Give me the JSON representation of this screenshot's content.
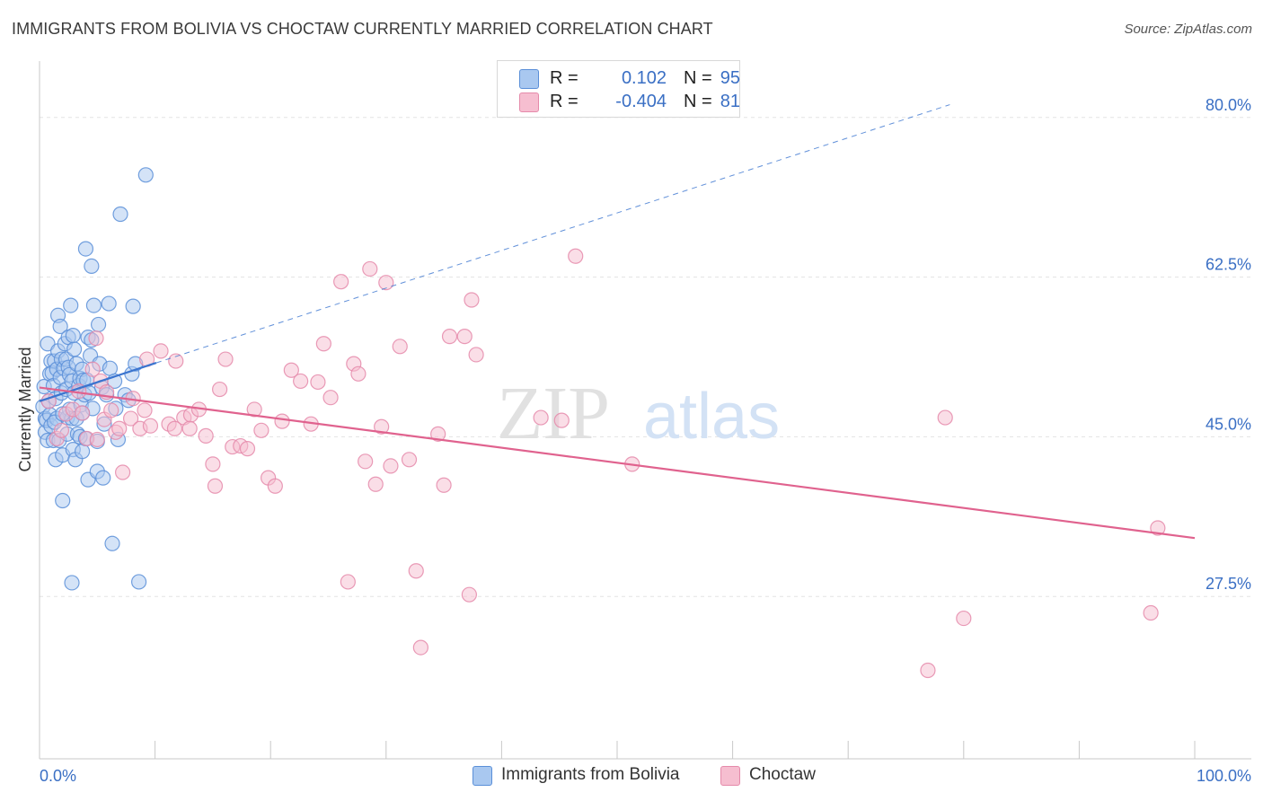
{
  "header": {
    "title": "IMMIGRANTS FROM BOLIVIA VS CHOCTAW CURRENTLY MARRIED CORRELATION CHART",
    "source": "Source: ZipAtlas.com"
  },
  "watermark": {
    "part1": "ZIP",
    "part2": "atlas"
  },
  "legend_top": {
    "rows": [
      {
        "r_label": "R =",
        "r_value": "0.102",
        "n_label": "N =",
        "n_value": "95"
      },
      {
        "r_label": "R =",
        "r_value": "-0.404",
        "n_label": "N =",
        "n_value": "81"
      }
    ]
  },
  "legend_bottom": {
    "items": [
      {
        "label": "Immigrants from Bolivia"
      },
      {
        "label": "Choctaw"
      }
    ]
  },
  "colors": {
    "bolivia_fill": "#a9c8f0",
    "bolivia_stroke": "#5a8fd8",
    "bolivia_line": "#3a74cf",
    "choctaw_fill": "#f6bed0",
    "choctaw_stroke": "#e58aaa",
    "choctaw_line": "#e0628e",
    "grid": "#e3e3e3",
    "axis": "#c8c8c8",
    "tick_label": "#3a6fc4"
  },
  "chart_data": {
    "type": "scatter",
    "xlabel": "",
    "ylabel": "Currently Married",
    "xlim": [
      0,
      100
    ],
    "ylim": [
      10,
      85
    ],
    "x_tick_labels": [
      {
        "value": 0,
        "label": "0.0%"
      },
      {
        "value": 100,
        "label": "100.0%"
      }
    ],
    "y_tick_labels": [
      {
        "value": 27.5,
        "label": "27.5%"
      },
      {
        "value": 45.0,
        "label": "45.0%"
      },
      {
        "value": 62.5,
        "label": "62.5%"
      },
      {
        "value": 80.0,
        "label": "80.0%"
      }
    ],
    "grid": true,
    "legend_position": "top-center",
    "series": [
      {
        "name": "Immigrants from Bolivia",
        "color": "#5a8fd8",
        "points": [
          [
            0.3,
            48.3
          ],
          [
            0.4,
            50.5
          ],
          [
            0.5,
            47.0
          ],
          [
            0.5,
            45.5
          ],
          [
            0.6,
            46.8
          ],
          [
            0.7,
            44.6
          ],
          [
            0.7,
            55.2
          ],
          [
            0.8,
            48.9
          ],
          [
            0.9,
            47.4
          ],
          [
            0.9,
            51.9
          ],
          [
            1.0,
            53.3
          ],
          [
            1.0,
            46.2
          ],
          [
            1.1,
            52.0
          ],
          [
            1.2,
            44.6
          ],
          [
            1.2,
            50.6
          ],
          [
            1.3,
            53.3
          ],
          [
            1.4,
            42.5
          ],
          [
            1.4,
            49.2
          ],
          [
            1.5,
            47.0
          ],
          [
            1.5,
            52.4
          ],
          [
            1.6,
            58.3
          ],
          [
            1.6,
            54.4
          ],
          [
            1.7,
            44.6
          ],
          [
            1.8,
            51.5
          ],
          [
            1.8,
            57.1
          ],
          [
            1.9,
            53.5
          ],
          [
            1.9,
            49.8
          ],
          [
            2.0,
            38.0
          ],
          [
            2.0,
            43.0
          ],
          [
            2.1,
            52.5
          ],
          [
            2.2,
            55.2
          ],
          [
            2.3,
            53.5
          ],
          [
            2.3,
            50.2
          ],
          [
            2.4,
            47.1
          ],
          [
            2.4,
            45.3
          ],
          [
            2.5,
            55.9
          ],
          [
            2.5,
            52.6
          ],
          [
            2.6,
            51.8
          ],
          [
            2.6,
            48.0
          ],
          [
            2.7,
            59.4
          ],
          [
            2.8,
            51.1
          ],
          [
            2.8,
            47.0
          ],
          [
            2.8,
            29.0
          ],
          [
            2.9,
            43.6
          ],
          [
            3.0,
            54.6
          ],
          [
            3.0,
            49.8
          ],
          [
            3.1,
            42.5
          ],
          [
            3.2,
            53.0
          ],
          [
            3.2,
            47.0
          ],
          [
            3.3,
            45.3
          ],
          [
            3.4,
            50.6
          ],
          [
            3.5,
            51.4
          ],
          [
            3.5,
            45.0
          ],
          [
            3.6,
            48.5
          ],
          [
            3.7,
            52.4
          ],
          [
            3.7,
            43.4
          ],
          [
            3.8,
            51.2
          ],
          [
            3.9,
            49.6
          ],
          [
            4.0,
            65.6
          ],
          [
            4.0,
            44.8
          ],
          [
            4.1,
            51.2
          ],
          [
            4.2,
            55.9
          ],
          [
            4.2,
            40.3
          ],
          [
            4.3,
            49.8
          ],
          [
            4.4,
            53.9
          ],
          [
            4.5,
            55.6
          ],
          [
            4.5,
            63.7
          ],
          [
            4.6,
            48.1
          ],
          [
            4.7,
            59.4
          ],
          [
            5.0,
            41.2
          ],
          [
            5.0,
            44.5
          ],
          [
            5.1,
            57.3
          ],
          [
            5.2,
            53.0
          ],
          [
            5.4,
            50.4
          ],
          [
            5.5,
            40.5
          ],
          [
            5.6,
            46.4
          ],
          [
            5.8,
            49.6
          ],
          [
            6.0,
            59.6
          ],
          [
            6.1,
            52.5
          ],
          [
            6.3,
            33.3
          ],
          [
            6.5,
            51.1
          ],
          [
            6.6,
            48.1
          ],
          [
            6.8,
            44.7
          ],
          [
            7.0,
            69.4
          ],
          [
            7.4,
            49.6
          ],
          [
            7.7,
            49.0
          ],
          [
            8.0,
            51.9
          ],
          [
            8.1,
            59.3
          ],
          [
            8.3,
            53.0
          ],
          [
            8.6,
            29.1
          ],
          [
            9.2,
            73.7
          ],
          [
            1.3,
            46.6
          ],
          [
            2.0,
            47.5
          ],
          [
            2.9,
            56.1
          ],
          [
            3.7,
            47.6
          ]
        ],
        "trend": {
          "x": [
            0,
            10.1
          ],
          "y": [
            48.9,
            53.1
          ]
        },
        "trend_extension": {
          "x": [
            10.1,
            78.8
          ],
          "y": [
            53.1,
            81.4
          ]
        }
      },
      {
        "name": "Choctaw",
        "color": "#e58aaa",
        "points": [
          [
            0.8,
            48.9
          ],
          [
            1.5,
            44.8
          ],
          [
            1.9,
            45.7
          ],
          [
            2.3,
            47.5
          ],
          [
            2.9,
            48.0
          ],
          [
            3.4,
            50.0
          ],
          [
            3.7,
            47.6
          ],
          [
            4.1,
            44.8
          ],
          [
            4.6,
            52.4
          ],
          [
            4.9,
            55.8
          ],
          [
            5.0,
            44.7
          ],
          [
            5.3,
            51.1
          ],
          [
            5.6,
            46.9
          ],
          [
            5.8,
            49.9
          ],
          [
            6.2,
            47.9
          ],
          [
            6.6,
            45.5
          ],
          [
            6.9,
            45.9
          ],
          [
            7.2,
            41.1
          ],
          [
            7.9,
            47.0
          ],
          [
            8.1,
            49.2
          ],
          [
            8.7,
            45.9
          ],
          [
            9.1,
            47.9
          ],
          [
            9.6,
            46.2
          ],
          [
            10.5,
            54.4
          ],
          [
            11.2,
            46.4
          ],
          [
            11.8,
            53.3
          ],
          [
            12.5,
            47.1
          ],
          [
            13.1,
            47.4
          ],
          [
            13.8,
            48.0
          ],
          [
            14.4,
            45.1
          ],
          [
            15.0,
            42.0
          ],
          [
            15.6,
            50.2
          ],
          [
            16.1,
            53.5
          ],
          [
            16.7,
            43.9
          ],
          [
            17.4,
            44.0
          ],
          [
            18.0,
            43.7
          ],
          [
            18.6,
            48.0
          ],
          [
            19.2,
            45.7
          ],
          [
            19.8,
            40.5
          ],
          [
            20.4,
            39.6
          ],
          [
            21.0,
            46.7
          ],
          [
            21.8,
            52.3
          ],
          [
            22.6,
            51.1
          ],
          [
            23.5,
            46.4
          ],
          [
            24.1,
            51.0
          ],
          [
            24.6,
            55.2
          ],
          [
            25.2,
            49.3
          ],
          [
            26.1,
            62.0
          ],
          [
            26.7,
            29.1
          ],
          [
            27.2,
            53.0
          ],
          [
            27.6,
            51.9
          ],
          [
            28.2,
            42.3
          ],
          [
            28.6,
            63.4
          ],
          [
            29.1,
            39.8
          ],
          [
            29.6,
            46.1
          ],
          [
            30.0,
            61.9
          ],
          [
            30.4,
            41.8
          ],
          [
            31.2,
            54.9
          ],
          [
            32.0,
            42.5
          ],
          [
            32.6,
            30.3
          ],
          [
            33.0,
            21.9
          ],
          [
            34.5,
            45.3
          ],
          [
            35.0,
            39.7
          ],
          [
            35.5,
            56.0
          ],
          [
            36.8,
            56.0
          ],
          [
            37.2,
            27.7
          ],
          [
            37.4,
            60.0
          ],
          [
            37.8,
            54.0
          ],
          [
            43.4,
            47.1
          ],
          [
            45.2,
            46.8
          ],
          [
            46.4,
            64.8
          ],
          [
            51.3,
            42.0
          ],
          [
            78.4,
            47.1
          ],
          [
            80.0,
            25.1
          ],
          [
            96.2,
            25.7
          ],
          [
            96.8,
            35.0
          ],
          [
            15.2,
            39.6
          ],
          [
            9.3,
            53.5
          ],
          [
            11.7,
            45.9
          ],
          [
            76.9,
            19.4
          ],
          [
            13.0,
            45.9
          ]
        ],
        "trend": {
          "x": [
            0,
            100
          ],
          "y": [
            50.4,
            33.9
          ]
        }
      }
    ]
  }
}
